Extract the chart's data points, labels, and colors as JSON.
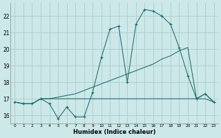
{
  "x": [
    0,
    1,
    2,
    3,
    4,
    5,
    6,
    7,
    8,
    9,
    10,
    11,
    12,
    13,
    14,
    15,
    16,
    17,
    18,
    19,
    20,
    21,
    22,
    23
  ],
  "line_main": [
    16.8,
    16.7,
    16.7,
    17.0,
    16.7,
    15.8,
    16.5,
    15.9,
    15.9,
    17.4,
    19.5,
    21.2,
    21.4,
    18.0,
    21.5,
    22.4,
    22.3,
    22.0,
    21.5,
    20.1,
    18.4,
    17.0,
    17.3,
    16.8
  ],
  "line_diag": [
    16.8,
    16.7,
    16.7,
    17.0,
    17.0,
    17.1,
    17.2,
    17.3,
    17.5,
    17.7,
    17.9,
    18.1,
    18.3,
    18.5,
    18.7,
    18.9,
    19.1,
    19.4,
    19.6,
    19.9,
    20.1,
    17.0,
    17.3,
    16.8
  ],
  "line_flat": [
    16.8,
    16.7,
    16.7,
    17.0,
    17.0,
    17.0,
    17.0,
    17.0,
    17.0,
    17.0,
    17.0,
    17.0,
    17.0,
    17.0,
    17.0,
    17.0,
    17.0,
    17.0,
    17.0,
    17.0,
    17.0,
    17.0,
    17.0,
    16.8
  ],
  "bg_color": "#cce8e8",
  "grid_color": "#aacccc",
  "line_color": "#1a6b6b",
  "ylabel_vals": [
    16,
    17,
    18,
    19,
    20,
    21,
    22
  ],
  "xlim": [
    -0.5,
    23.5
  ],
  "ylim": [
    15.5,
    22.8
  ],
  "xlabel": "Humidex (Indice chaleur)"
}
